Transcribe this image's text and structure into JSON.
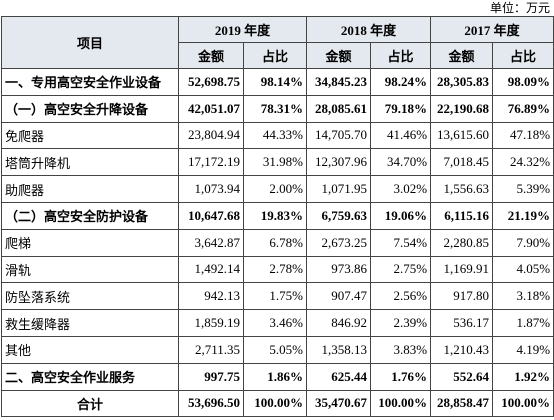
{
  "unit": "单位：万元",
  "table": {
    "header": {
      "item": "项目",
      "years": [
        "2019 年度",
        "2018 年度",
        "2017 年度"
      ],
      "amount": "金额",
      "share": "占比"
    },
    "rows": [
      [
        "一、专用高空安全作业设备",
        "52,698.75",
        "98.14%",
        "34,845.23",
        "98.24%",
        "28,305.83",
        "98.09%"
      ],
      [
        "（一）高空安全升降设备",
        "42,051.07",
        "78.31%",
        "28,085.61",
        "79.18%",
        "22,190.68",
        "76.89%"
      ],
      [
        "免爬器",
        "23,804.94",
        "44.33%",
        "14,705.70",
        "41.46%",
        "13,615.60",
        "47.18%"
      ],
      [
        "塔筒升降机",
        "17,172.19",
        "31.98%",
        "12,307.96",
        "34.70%",
        "7,018.45",
        "24.32%"
      ],
      [
        "助爬器",
        "1,073.94",
        "2.00%",
        "1,071.95",
        "3.02%",
        "1,556.63",
        "5.39%"
      ],
      [
        "（二）高空安全防护设备",
        "10,647.68",
        "19.83%",
        "6,759.63",
        "19.06%",
        "6,115.16",
        "21.19%"
      ],
      [
        "爬梯",
        "3,642.87",
        "6.78%",
        "2,673.25",
        "7.54%",
        "2,280.85",
        "7.90%"
      ],
      [
        "滑轨",
        "1,492.14",
        "2.78%",
        "973.86",
        "2.75%",
        "1,169.91",
        "4.05%"
      ],
      [
        "防坠落系统",
        "942.13",
        "1.75%",
        "907.47",
        "2.56%",
        "917.80",
        "3.18%"
      ],
      [
        "救生缓降器",
        "1,859.19",
        "3.46%",
        "846.92",
        "2.39%",
        "536.17",
        "1.87%"
      ],
      [
        "其他",
        "2,711.35",
        "5.05%",
        "1,358.13",
        "3.83%",
        "1,210.43",
        "4.19%"
      ],
      [
        "二、高空安全作业服务",
        "997.75",
        "1.86%",
        "625.44",
        "1.76%",
        "552.64",
        "1.92%"
      ],
      [
        "合计",
        "53,696.50",
        "100.00%",
        "35,470.67",
        "100.00%",
        "28,858.47",
        "100.00%"
      ]
    ]
  }
}
